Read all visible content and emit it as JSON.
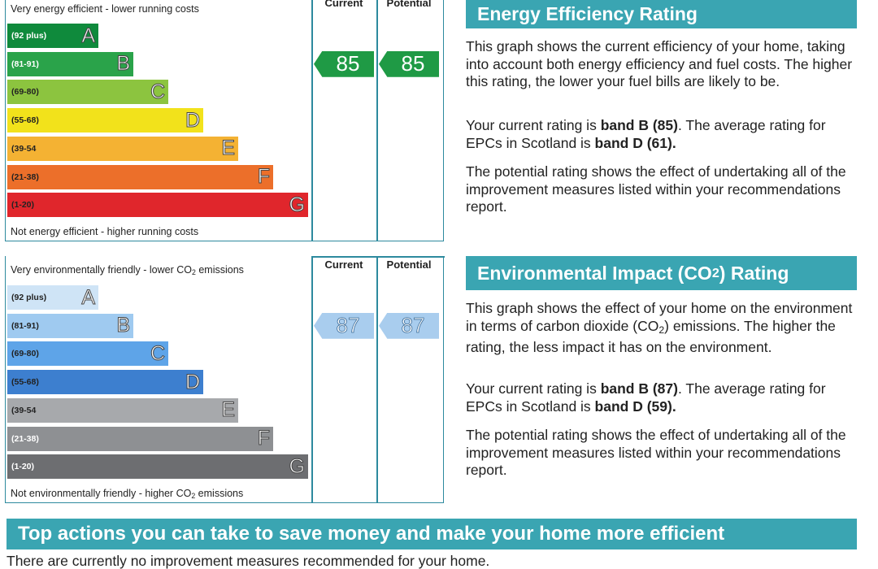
{
  "energy": {
    "top_label": "Very energy efficient - lower running costs",
    "bottom_label": "Not energy efficient - higher running costs",
    "col_current": "Current",
    "col_potential": "Potential",
    "bands": [
      {
        "range": "(92 plus)",
        "letter": "A",
        "color": "#0f8a3c",
        "range_color": "#ffffff"
      },
      {
        "range": "(81-91)",
        "letter": "B",
        "color": "#2aa34a",
        "range_color": "#ffffff"
      },
      {
        "range": "(69-80)",
        "letter": "C",
        "color": "#8cc43f",
        "range_color": "#222222"
      },
      {
        "range": "(55-68)",
        "letter": "D",
        "color": "#f2e21b",
        "range_color": "#222222"
      },
      {
        "range": "(39-54",
        "letter": "E",
        "color": "#f4b233",
        "range_color": "#222222"
      },
      {
        "range": "(21-38)",
        "letter": "F",
        "color": "#ec6f2a",
        "range_color": "#222222"
      },
      {
        "range": "(1-20)",
        "letter": "G",
        "color": "#e0262c",
        "range_color": "#222222"
      }
    ],
    "current": "85",
    "potential": "85",
    "current_band_index": 1,
    "heading": "Energy Efficiency Rating",
    "para1": "This graph shows the current efficiency of your home, taking into account both energy efficiency and fuel costs. The higher this rating, the lower your fuel bills are likely to be.",
    "para2_pre": "Your current rating is ",
    "para2_b1": "band B (85)",
    "para2_mid": ". The average rating for EPCs in Scotland is ",
    "para2_b2": "band D (61).",
    "para3": "The potential rating shows the effect of undertaking all of the improvement measures listed within your recommendations report."
  },
  "environment": {
    "top_label_pre": "Very environmentally friendly - lower CO",
    "top_label_sub": "2",
    "top_label_post": " emissions",
    "bottom_label_pre": "Not environmentally friendly - higher CO",
    "bottom_label_sub": "2",
    "bottom_label_post": " emissions",
    "col_current": "Current",
    "col_potential": "Potential",
    "bands": [
      {
        "range": "(92 plus)",
        "letter": "A",
        "color": "#cfe4f6",
        "range_color": "#222222"
      },
      {
        "range": "(81-91)",
        "letter": "B",
        "color": "#9fcaf0",
        "range_color": "#222222"
      },
      {
        "range": "(69-80)",
        "letter": "C",
        "color": "#5ea4e8",
        "range_color": "#222222"
      },
      {
        "range": "(55-68)",
        "letter": "D",
        "color": "#3d7fcf",
        "range_color": "#222222"
      },
      {
        "range": "(39-54",
        "letter": "E",
        "color": "#a7a9ac",
        "range_color": "#222222"
      },
      {
        "range": "(21-38)",
        "letter": "F",
        "color": "#8e9093",
        "range_color": "#ffffff"
      },
      {
        "range": "(1-20)",
        "letter": "G",
        "color": "#6d6e71",
        "range_color": "#ffffff"
      }
    ],
    "current": "87",
    "potential": "87",
    "current_band_index": 1,
    "heading_pre": "Environmental Impact (CO",
    "heading_sub": "2",
    "heading_post": ") Rating",
    "para1_pre": "This graph shows the effect of your home on the environment in terms of carbon dioxide (CO",
    "para1_sub": "2",
    "para1_post": ") emissions. The higher the rating, the less impact it has on the environment.",
    "para2_pre": "Your current rating is ",
    "para2_b1": "band B (87)",
    "para2_mid": ". The average rating for EPCs in Scotland is ",
    "para2_b2": "band D (59).",
    "para3": "The potential rating shows the effect of undertaking all of the improvement measures listed within your recommendations report."
  },
  "actions": {
    "heading": "Top actions you can take to save money and make your home more efficient",
    "text": "There are currently no improvement measures recommended for your home."
  }
}
